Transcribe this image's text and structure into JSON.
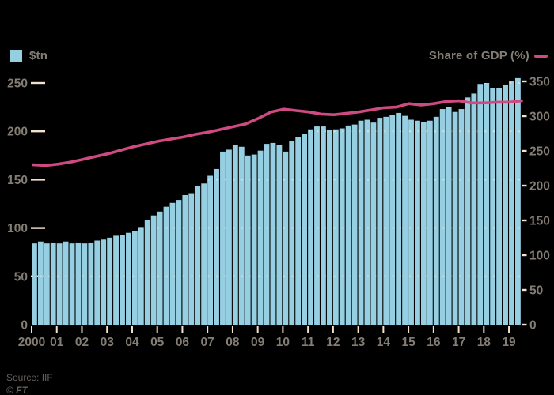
{
  "colors": {
    "background": "#000000",
    "bar": "#96cfe2",
    "line": "#cf4a82",
    "axis_text": "#847d75",
    "tick_cream": "#f3e1cb",
    "grid_dot": "rgba(246,231,209,0.75)",
    "source_text": "#66605a"
  },
  "legend": {
    "bar_label": "$tn",
    "line_label": "Share of GDP (%)"
  },
  "source": {
    "source_text": "Source: IIF",
    "credit_text": "© FT"
  },
  "chart_data": {
    "type": "bar+line",
    "title": "",
    "x_axis": {
      "labels": [
        "2000",
        "01",
        "02",
        "03",
        "04",
        "05",
        "06",
        "07",
        "08",
        "09",
        "10",
        "11",
        "12",
        "13",
        "14",
        "15",
        "16",
        "17",
        "18",
        "19"
      ]
    },
    "left_axis": {
      "label": "$tn",
      "ticks": [
        0,
        50,
        100,
        150,
        200,
        250
      ],
      "range": [
        0,
        260
      ]
    },
    "right_axis": {
      "label": "Share of GDP (%)",
      "ticks": [
        0,
        50,
        100,
        150,
        200,
        250,
        300,
        350
      ],
      "range": [
        0,
        356
      ]
    },
    "bar_series": {
      "name": "$tn",
      "axis": "left",
      "unit": "$tn",
      "frequency": "quarterly",
      "start": "2000-Q1",
      "end": "2019-Q2",
      "values": [
        84,
        86,
        84,
        85,
        84,
        86,
        84,
        85,
        84,
        85,
        87,
        88,
        90,
        92,
        93,
        95,
        97,
        101,
        108,
        113,
        117,
        122,
        126,
        129,
        134,
        136,
        143,
        146,
        154,
        161,
        179,
        181,
        186,
        184,
        175,
        176,
        180,
        187,
        188,
        186,
        179,
        190,
        194,
        197,
        202,
        205,
        205,
        201,
        202,
        203,
        206,
        207,
        211,
        212,
        209,
        214,
        215,
        217,
        219,
        216,
        212,
        211,
        210,
        211,
        215,
        223,
        225,
        220,
        223,
        235,
        239,
        249,
        250,
        245,
        245,
        248,
        252,
        255
      ]
    },
    "line_series": {
      "name": "Share of GDP (%)",
      "axis": "right",
      "unit": "%",
      "frequency": "semiannual",
      "start": "2000-H1",
      "end": "2019-H2",
      "values": [
        230,
        229,
        231,
        234,
        238,
        242,
        246,
        251,
        256,
        260,
        264,
        267,
        270,
        274,
        277,
        281,
        285,
        289,
        297,
        306,
        310,
        308,
        306,
        303,
        302,
        304,
        306,
        309,
        312,
        313,
        318,
        316,
        318,
        321,
        322,
        319,
        319,
        320,
        320,
        322
      ]
    }
  }
}
